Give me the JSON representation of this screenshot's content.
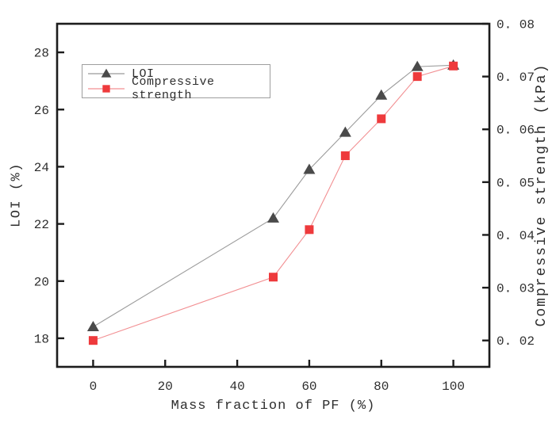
{
  "figure": {
    "background": "#ffffff"
  },
  "chart_data": {
    "type": "line",
    "title": "",
    "x": [
      0,
      50,
      60,
      70,
      80,
      90,
      100
    ],
    "series": [
      {
        "name": "LOI",
        "axis": "left",
        "marker": "triangle",
        "marker_color": "#4a4a4a",
        "line_color": "#9b9b9b",
        "values": [
          18.4,
          22.2,
          23.9,
          25.2,
          26.5,
          27.5,
          27.55
        ]
      },
      {
        "name": "Compressive strength",
        "axis": "right",
        "marker": "square",
        "marker_color": "#ee3a3c",
        "line_color": "#f28f92",
        "values": [
          0.02,
          0.032,
          0.041,
          0.055,
          0.062,
          0.07,
          0.072
        ]
      }
    ],
    "xlabel": "Mass fraction of PF (%)",
    "ylabel_left": "LOI (%)",
    "ylabel_right": "Compressive strength (kPa)",
    "xlim": [
      -10,
      110
    ],
    "ylim_left": [
      17,
      29
    ],
    "ylim_right": [
      0.015,
      0.08
    ],
    "xticks": {
      "values": [
        0,
        20,
        40,
        60,
        80,
        100
      ],
      "labels": [
        "0",
        "20",
        "40",
        "60",
        "80",
        "100"
      ]
    },
    "yticks_left": {
      "values": [
        18,
        20,
        22,
        24,
        26,
        28
      ],
      "labels": [
        "18",
        "20",
        "22",
        "24",
        "26",
        "28"
      ]
    },
    "yticks_right": {
      "values": [
        0.02,
        0.03,
        0.04,
        0.05,
        0.06,
        0.07,
        0.08
      ],
      "labels": [
        "0. 02",
        "0. 03",
        "0. 04",
        "0. 05",
        "0. 06",
        "0. 07",
        "0. 08"
      ]
    },
    "legend": {
      "position": "upper-left-inside"
    },
    "grid": false,
    "frame": true,
    "axis_color": "#1c1c1c",
    "text_color": "#2e2e2e"
  }
}
